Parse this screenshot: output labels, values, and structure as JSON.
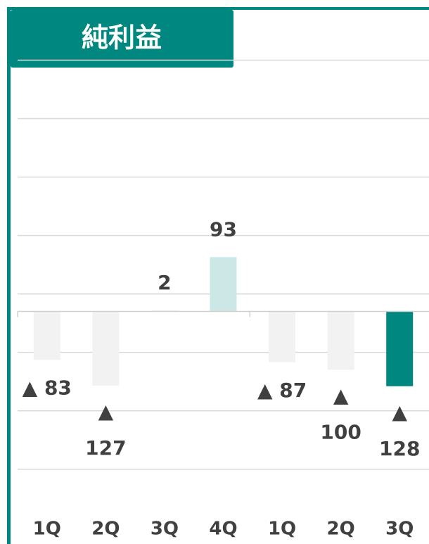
{
  "chart_data": {
    "type": "bar",
    "title": "純利益",
    "categories": [
      "1Q",
      "2Q",
      "3Q",
      "4Q",
      "1Q",
      "2Q",
      "3Q"
    ],
    "values": [
      -83,
      -127,
      2,
      93,
      -87,
      -100,
      -128
    ],
    "value_labels": [
      "▲ 83",
      "▲ 127",
      "2",
      "93",
      "▲ 87",
      "▲ 100",
      "▲ 128"
    ],
    "colors": [
      "#f2f2f2",
      "#f2f2f2",
      "#f2f2f2",
      "#cde7e7",
      "#f2f2f2",
      "#f2f2f2",
      "#00877f"
    ],
    "ylim": [
      -398,
      533
    ],
    "yticks": [
      -270,
      -170,
      -70,
      30,
      130,
      230,
      330,
      430
    ],
    "grid": true
  }
}
